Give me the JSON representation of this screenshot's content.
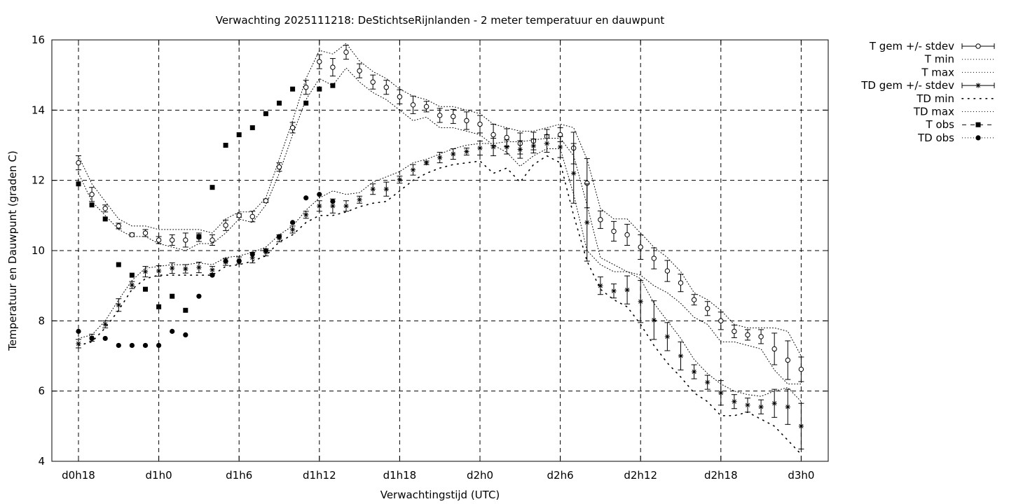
{
  "chart_data": {
    "type": "line",
    "title": "Verwachting 2025111218: DeStichtseRijnlanden - 2 meter temperatuur en dauwpunt",
    "xlabel": "Verwachtingstijd (UTC)",
    "ylabel": "Temperatuur en Dauwpunt (graden C)",
    "xlim": [
      0,
      57
    ],
    "ylim": [
      4,
      16
    ],
    "grid": true,
    "legend_position": "right",
    "x_ticks": [
      {
        "x": 0,
        "label": "d0h18"
      },
      {
        "x": 6,
        "label": "d1h0"
      },
      {
        "x": 12,
        "label": "d1h6"
      },
      {
        "x": 18,
        "label": "d1h12"
      },
      {
        "x": 24,
        "label": "d1h18"
      },
      {
        "x": 30,
        "label": "d2h0"
      },
      {
        "x": 36,
        "label": "d2h6"
      },
      {
        "x": 42,
        "label": "d2h12"
      },
      {
        "x": 48,
        "label": "d2h18"
      },
      {
        "x": 54,
        "label": "d3h0"
      }
    ],
    "y_ticks": [
      "4",
      "6",
      "8",
      "10",
      "12",
      "14",
      "16"
    ],
    "series": [
      {
        "name": "T gem +/- stdev",
        "style": "errorbar-open-circle",
        "x": [
          0,
          1,
          2,
          3,
          4,
          5,
          6,
          7,
          8,
          9,
          10,
          11,
          12,
          13,
          14,
          15,
          16,
          17,
          18,
          19,
          20,
          21,
          22,
          23,
          24,
          25,
          26,
          27,
          28,
          29,
          30,
          31,
          32,
          33,
          34,
          35,
          36,
          37,
          38,
          39,
          40,
          41,
          42,
          43,
          44,
          45,
          46,
          47,
          48,
          49,
          50,
          51,
          52,
          53,
          54
        ],
        "mean": [
          12.5,
          11.6,
          11.2,
          10.7,
          10.45,
          10.5,
          10.3,
          10.3,
          10.3,
          10.38,
          10.3,
          10.72,
          11.0,
          10.97,
          11.42,
          12.38,
          13.5,
          14.65,
          15.38,
          15.22,
          15.65,
          15.12,
          14.8,
          14.65,
          14.38,
          14.15,
          14.1,
          13.85,
          13.82,
          13.7,
          13.6,
          13.3,
          13.22,
          13.05,
          13.12,
          13.25,
          13.3,
          12.92,
          11.92,
          10.88,
          10.55,
          10.45,
          10.1,
          9.78,
          9.42,
          9.08,
          8.6,
          8.35,
          8.0,
          7.7,
          7.6,
          7.55,
          7.2,
          6.88,
          6.62
        ],
        "stdev": [
          0.2,
          0.2,
          0.1,
          0.08,
          0.05,
          0.1,
          0.1,
          0.15,
          0.2,
          0.12,
          0.15,
          0.15,
          0.05,
          0.15,
          0.05,
          0.12,
          0.15,
          0.2,
          0.2,
          0.25,
          0.2,
          0.2,
          0.2,
          0.2,
          0.2,
          0.25,
          0.15,
          0.2,
          0.2,
          0.25,
          0.25,
          0.3,
          0.25,
          0.3,
          0.25,
          0.2,
          0.2,
          0.45,
          0.7,
          0.25,
          0.28,
          0.3,
          0.35,
          0.3,
          0.3,
          0.25,
          0.15,
          0.2,
          0.25,
          0.18,
          0.15,
          0.2,
          0.45,
          0.55,
          0.35
        ]
      },
      {
        "name": "T min",
        "style": "dotted",
        "x": [
          0,
          1,
          2,
          3,
          4,
          5,
          6,
          7,
          8,
          9,
          10,
          11,
          12,
          13,
          14,
          15,
          16,
          17,
          18,
          19,
          20,
          21,
          22,
          23,
          24,
          25,
          26,
          27,
          28,
          29,
          30,
          31,
          32,
          33,
          34,
          35,
          36,
          37,
          38,
          39,
          40,
          41,
          42,
          43,
          44,
          45,
          46,
          47,
          48,
          49,
          50,
          51,
          52,
          53,
          54
        ],
        "values": [
          12.2,
          11.4,
          11.0,
          10.6,
          10.4,
          10.4,
          10.2,
          10.1,
          10.0,
          10.2,
          10.2,
          10.5,
          10.9,
          10.8,
          11.3,
          12.2,
          13.3,
          14.3,
          14.9,
          14.7,
          15.2,
          14.8,
          14.5,
          14.3,
          14.0,
          13.7,
          13.8,
          13.5,
          13.5,
          13.4,
          13.3,
          13.0,
          12.8,
          12.4,
          12.7,
          12.9,
          12.9,
          11.6,
          10.0,
          9.6,
          9.4,
          9.4,
          9.3,
          9.0,
          8.8,
          8.5,
          8.1,
          7.9,
          7.4,
          7.4,
          7.3,
          7.2,
          6.6,
          6.2,
          6.2
        ]
      },
      {
        "name": "T max",
        "style": "dotted",
        "x": [
          0,
          1,
          2,
          3,
          4,
          5,
          6,
          7,
          8,
          9,
          10,
          11,
          12,
          13,
          14,
          15,
          16,
          17,
          18,
          19,
          20,
          21,
          22,
          23,
          24,
          25,
          26,
          27,
          28,
          29,
          30,
          31,
          32,
          33,
          34,
          35,
          36,
          37,
          38,
          39,
          40,
          41,
          42,
          43,
          44,
          45,
          46,
          47,
          48,
          49,
          50,
          51,
          52,
          53,
          54
        ],
        "values": [
          12.7,
          11.9,
          11.4,
          10.9,
          10.7,
          10.7,
          10.6,
          10.6,
          10.6,
          10.6,
          10.5,
          10.9,
          11.1,
          11.1,
          11.5,
          12.6,
          13.7,
          14.9,
          15.7,
          15.6,
          15.9,
          15.4,
          15.1,
          14.9,
          14.6,
          14.4,
          14.3,
          14.1,
          14.1,
          14.0,
          13.9,
          13.6,
          13.5,
          13.4,
          13.4,
          13.5,
          13.6,
          13.5,
          12.6,
          11.2,
          10.9,
          10.9,
          10.5,
          10.1,
          9.8,
          9.4,
          8.8,
          8.6,
          8.3,
          7.9,
          7.8,
          7.8,
          7.8,
          7.7,
          7.0
        ]
      },
      {
        "name": "TD gem +/- stdev",
        "style": "errorbar-asterisk",
        "x": [
          0,
          1,
          2,
          3,
          4,
          5,
          6,
          7,
          8,
          9,
          10,
          11,
          12,
          13,
          14,
          15,
          16,
          17,
          18,
          19,
          20,
          21,
          22,
          23,
          24,
          25,
          26,
          27,
          28,
          29,
          30,
          31,
          32,
          33,
          34,
          35,
          36,
          37,
          38,
          39,
          40,
          41,
          42,
          43,
          44,
          45,
          46,
          47,
          48,
          49,
          50,
          51,
          52,
          53,
          54
        ],
        "mean": [
          7.35,
          7.52,
          7.9,
          8.45,
          9.02,
          9.4,
          9.42,
          9.5,
          9.48,
          9.52,
          9.45,
          9.68,
          9.72,
          9.8,
          9.95,
          10.35,
          10.6,
          11.02,
          11.27,
          11.27,
          11.27,
          11.45,
          11.75,
          11.75,
          12.02,
          12.3,
          12.5,
          12.65,
          12.75,
          12.82,
          12.92,
          12.95,
          12.95,
          12.88,
          12.98,
          13.05,
          12.95,
          12.2,
          10.8,
          9.0,
          8.85,
          8.88,
          8.55,
          8.02,
          7.55,
          7.0,
          6.55,
          6.25,
          5.95,
          5.7,
          5.6,
          5.55,
          5.65,
          5.55,
          5.0
        ],
        "stdev": [
          0.12,
          0.1,
          0.1,
          0.18,
          0.1,
          0.15,
          0.15,
          0.15,
          0.12,
          0.15,
          0.1,
          0.1,
          0.1,
          0.15,
          0.1,
          0.1,
          0.1,
          0.1,
          0.15,
          0.2,
          0.15,
          0.1,
          0.15,
          0.2,
          0.1,
          0.15,
          0.05,
          0.15,
          0.15,
          0.1,
          0.2,
          0.25,
          0.2,
          0.25,
          0.2,
          0.25,
          0.3,
          0.85,
          1.1,
          0.25,
          0.2,
          0.4,
          0.6,
          0.55,
          0.4,
          0.4,
          0.2,
          0.2,
          0.35,
          0.2,
          0.2,
          0.2,
          0.4,
          0.5,
          0.65
        ]
      },
      {
        "name": "TD min",
        "style": "sparse-dotted",
        "x": [
          0,
          1,
          2,
          3,
          4,
          5,
          6,
          7,
          8,
          9,
          10,
          11,
          12,
          13,
          14,
          15,
          16,
          17,
          18,
          19,
          20,
          21,
          22,
          23,
          24,
          25,
          26,
          27,
          28,
          29,
          30,
          31,
          32,
          33,
          34,
          35,
          36,
          37,
          38,
          39,
          40,
          41,
          42,
          43,
          44,
          45,
          46,
          47,
          48,
          49,
          50,
          51,
          52,
          53,
          54
        ],
        "values": [
          7.3,
          7.4,
          7.8,
          8.3,
          8.9,
          9.2,
          9.3,
          9.3,
          9.3,
          9.3,
          9.3,
          9.55,
          9.6,
          9.7,
          9.85,
          10.25,
          10.45,
          10.8,
          11.0,
          11.0,
          11.1,
          11.25,
          11.35,
          11.4,
          11.7,
          12.0,
          12.2,
          12.35,
          12.45,
          12.5,
          12.55,
          12.2,
          12.35,
          11.95,
          12.45,
          12.7,
          12.5,
          11.0,
          9.7,
          8.9,
          8.6,
          8.4,
          7.9,
          7.3,
          6.8,
          6.4,
          5.95,
          5.7,
          5.3,
          5.3,
          5.4,
          5.2,
          5.0,
          4.6,
          4.2
        ]
      },
      {
        "name": "TD max",
        "style": "dotted",
        "x": [
          0,
          1,
          2,
          3,
          4,
          5,
          6,
          7,
          8,
          9,
          10,
          11,
          12,
          13,
          14,
          15,
          16,
          17,
          18,
          19,
          20,
          21,
          22,
          23,
          24,
          25,
          26,
          27,
          28,
          29,
          30,
          31,
          32,
          33,
          34,
          35,
          36,
          37,
          38,
          39,
          40,
          41,
          42,
          43,
          44,
          45,
          46,
          47,
          48,
          49,
          50,
          51,
          52,
          53,
          54
        ],
        "values": [
          7.5,
          7.6,
          8.0,
          8.6,
          9.15,
          9.5,
          9.55,
          9.6,
          9.6,
          9.65,
          9.6,
          9.8,
          9.85,
          9.95,
          10.1,
          10.45,
          10.7,
          11.15,
          11.5,
          11.7,
          11.6,
          11.65,
          11.95,
          12.1,
          12.25,
          12.5,
          12.6,
          12.75,
          12.9,
          13.0,
          13.05,
          13.05,
          13.1,
          13.1,
          13.15,
          13.2,
          13.2,
          12.7,
          11.3,
          9.8,
          9.6,
          9.4,
          9.2,
          8.5,
          8.0,
          7.5,
          6.9,
          6.5,
          6.2,
          6.0,
          5.9,
          5.85,
          6.0,
          6.1,
          5.7
        ]
      },
      {
        "name": "T obs",
        "style": "filled-square",
        "x": [
          0,
          1,
          2,
          3,
          4,
          5,
          6,
          7,
          8,
          9,
          10,
          11,
          12,
          13,
          14,
          15,
          16,
          17,
          18,
          19
        ],
        "values": [
          11.9,
          11.3,
          10.9,
          9.6,
          9.3,
          8.9,
          8.4,
          8.7,
          8.3,
          10.4,
          11.8,
          13.0,
          13.3,
          13.5,
          13.9,
          14.2,
          14.6,
          14.2,
          14.6,
          14.7
        ]
      },
      {
        "name": "TD obs",
        "style": "filled-circle",
        "x": [
          0,
          1,
          2,
          3,
          4,
          5,
          6,
          7,
          8,
          9,
          10,
          11,
          12,
          13,
          14,
          15,
          16,
          17,
          18,
          19
        ],
        "values": [
          7.7,
          7.5,
          7.5,
          7.3,
          7.3,
          7.3,
          7.3,
          7.7,
          7.6,
          8.7,
          9.3,
          9.7,
          9.7,
          9.9,
          10.0,
          10.4,
          10.8,
          11.5,
          11.6,
          11.4
        ]
      }
    ]
  }
}
